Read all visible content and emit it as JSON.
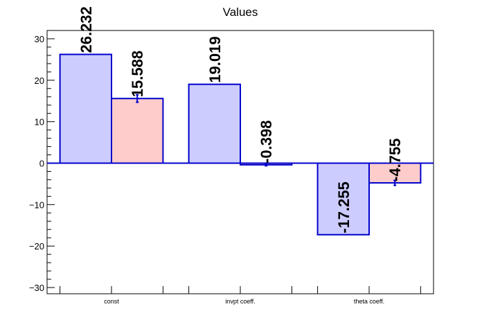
{
  "chart_data": {
    "type": "bar",
    "title": "Values",
    "categories": [
      "const",
      "invpt coeff.",
      "theta coeff."
    ],
    "series": [
      {
        "values": [
          26.232,
          19.019,
          -17.255
        ],
        "errors": [
          0.0,
          0.0,
          0.0
        ],
        "color": "#ccccff",
        "stroke": "#0000cc"
      },
      {
        "values": [
          15.588,
          -0.398,
          -4.755
        ],
        "errors": [
          0.9,
          0.25,
          0.6
        ],
        "color": "#ffcccc",
        "stroke": "#0000cc"
      }
    ],
    "data_labels": [
      [
        "26.232",
        "19.019",
        "-17.255"
      ],
      [
        "15.588",
        "-0.398",
        "-4.755"
      ]
    ],
    "ylim": [
      -31.5,
      32
    ],
    "yticks": [
      -30,
      -20,
      -10,
      0,
      10,
      20,
      30
    ],
    "xlabel": "",
    "ylabel": "",
    "grid": false,
    "legend": "none"
  }
}
